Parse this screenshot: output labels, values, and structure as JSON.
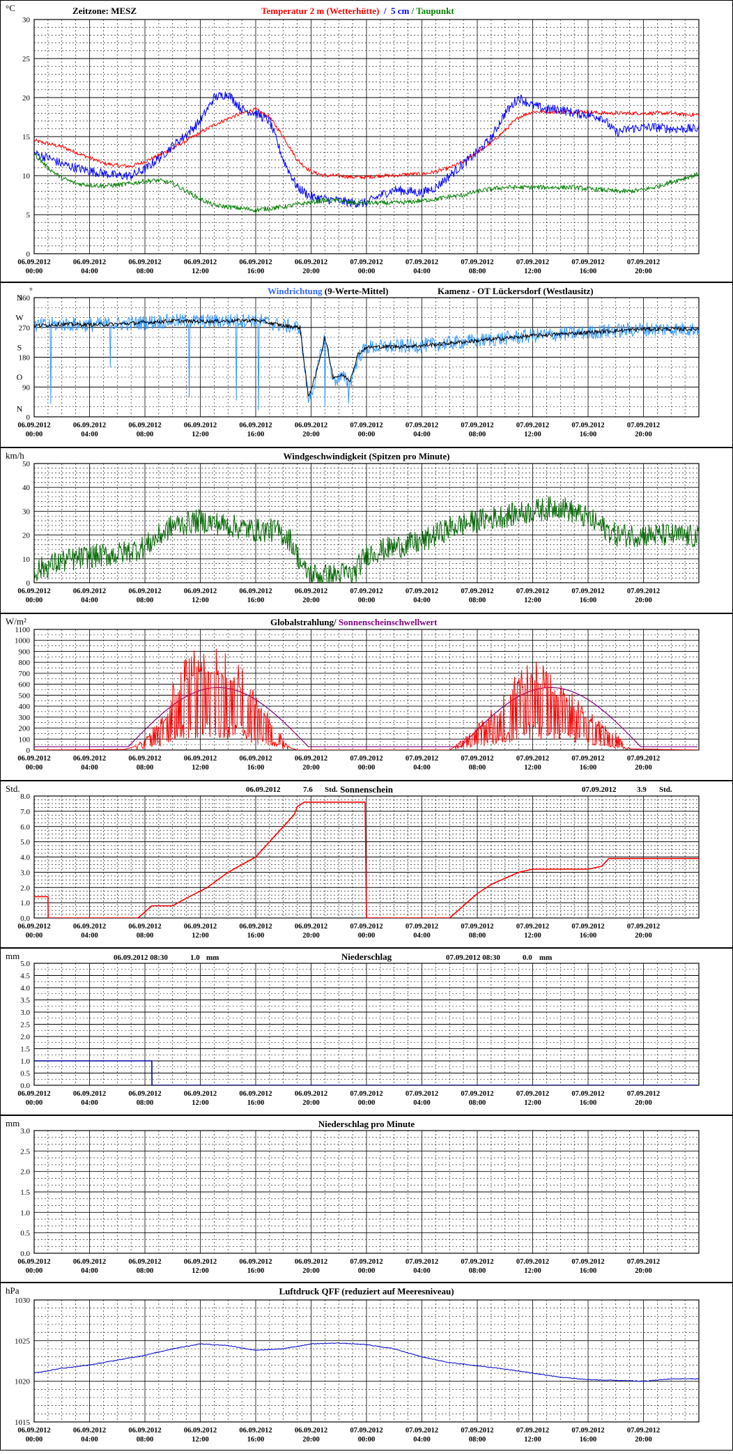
{
  "time_axis": {
    "date_labels": [
      "06.09.2012",
      "06.09.2012",
      "06.09.2012",
      "06.09.2012",
      "06.09.2012",
      "06.09.2012",
      "07.09.2012",
      "07.09.2012",
      "07.09.2012",
      "07.09.2012",
      "07.09.2012",
      "07.09.2012"
    ],
    "time_labels": [
      "00:00",
      "04:00",
      "08:00",
      "12:00",
      "16:00",
      "20:00",
      "00:00",
      "04:00",
      "08:00",
      "12:00",
      "16:00",
      "20:00"
    ]
  },
  "chart_data": [
    {
      "id": "temperature",
      "type": "line",
      "unit": "°C",
      "header_left": "Zeitzone: MESZ",
      "title_parts": [
        {
          "text": "Temperatur 2 m (Wetterhütte)",
          "color": "#ff0000"
        },
        {
          "text": "  /  ",
          "color": "#0000ff"
        },
        {
          "text": "5 cm",
          "color": "#0000ff"
        },
        {
          "text": " / ",
          "color": "#008000"
        },
        {
          "text": "Taupunkt",
          "color": "#008000"
        }
      ],
      "ylim": [
        0,
        30
      ],
      "yticks": [
        "0",
        "5",
        "10",
        "15",
        "20",
        "25",
        "30"
      ],
      "xlim_hours": [
        0,
        48
      ],
      "grid": true,
      "series": [
        {
          "color": "#ff0000",
          "noise": 0.25,
          "x": [
            0,
            1,
            2,
            3,
            4,
            5,
            6,
            7,
            8,
            9,
            10,
            11,
            12,
            13,
            14,
            15,
            16,
            17,
            18,
            19,
            20,
            21,
            22,
            23,
            24,
            25,
            26,
            27,
            28,
            29,
            30,
            31,
            32,
            33,
            34,
            35,
            36,
            37,
            38,
            39,
            40,
            41,
            42,
            43,
            44,
            45,
            46,
            47,
            48
          ],
          "values": [
            14.5,
            14.1,
            13.7,
            13.0,
            12.3,
            11.6,
            11.3,
            11.2,
            11.8,
            12.6,
            13.5,
            14.5,
            15.5,
            16.5,
            17.3,
            18.0,
            18.5,
            17.5,
            15.0,
            12.0,
            10.5,
            10.0,
            10.0,
            9.8,
            9.8,
            10.0,
            10.0,
            10.2,
            10.2,
            10.5,
            11.0,
            11.8,
            13.0,
            14.2,
            15.8,
            17.5,
            18.2,
            18.2,
            18.2,
            18.2,
            18.2,
            18.0,
            18.0,
            18.0,
            18.0,
            18.0,
            18.0,
            17.8,
            17.8
          ]
        },
        {
          "color": "#0000ff",
          "noise": 0.6,
          "x": [
            0,
            1,
            2,
            3,
            4,
            5,
            6,
            7,
            8,
            9,
            10,
            11,
            12,
            13,
            14,
            15,
            16,
            17,
            18,
            19,
            20,
            21,
            22,
            23,
            24,
            25,
            26,
            27,
            28,
            29,
            30,
            31,
            32,
            33,
            34,
            35,
            36,
            37,
            38,
            39,
            40,
            41,
            42,
            43,
            44,
            45,
            46,
            47,
            48
          ],
          "values": [
            12.8,
            12.3,
            11.5,
            11.0,
            10.6,
            10.3,
            10.0,
            10.0,
            10.8,
            12.2,
            13.8,
            15.3,
            17.0,
            20.0,
            20.5,
            18.5,
            18.0,
            17.0,
            12.0,
            8.5,
            7.3,
            7.0,
            6.8,
            6.5,
            6.5,
            7.5,
            8.2,
            8.0,
            7.8,
            8.5,
            10.0,
            11.5,
            13.0,
            14.8,
            18.0,
            20.0,
            19.0,
            18.5,
            18.5,
            18.0,
            17.8,
            17.5,
            15.5,
            16.0,
            16.2,
            16.2,
            16.0,
            16.0,
            16.0
          ]
        },
        {
          "color": "#008000",
          "noise": 0.3,
          "x": [
            0,
            1,
            2,
            3,
            4,
            5,
            6,
            7,
            8,
            9,
            10,
            11,
            12,
            13,
            14,
            15,
            16,
            17,
            18,
            19,
            20,
            21,
            22,
            23,
            24,
            25,
            26,
            27,
            28,
            29,
            30,
            31,
            32,
            33,
            34,
            35,
            36,
            37,
            38,
            39,
            40,
            41,
            42,
            43,
            44,
            45,
            46,
            47,
            48
          ],
          "values": [
            12.8,
            11.0,
            9.7,
            9.0,
            8.8,
            8.7,
            8.8,
            9.0,
            9.3,
            9.4,
            9.0,
            8.0,
            7.0,
            6.2,
            6.0,
            5.8,
            5.6,
            5.8,
            6.0,
            6.3,
            6.6,
            6.8,
            6.8,
            6.5,
            6.5,
            6.5,
            6.5,
            6.6,
            6.8,
            7.0,
            7.3,
            7.5,
            8.0,
            8.3,
            8.5,
            8.5,
            8.5,
            8.5,
            8.5,
            8.5,
            8.3,
            8.2,
            8.0,
            8.0,
            8.2,
            8.6,
            9.2,
            9.7,
            10.2
          ]
        }
      ]
    },
    {
      "id": "wind_direction",
      "type": "line",
      "title_parts": [
        {
          "text": "Windrichtung",
          "color": "#3366ff"
        },
        {
          "text": " (9-Werte-Mittel)",
          "color": "#000000"
        }
      ],
      "title_right": "Kamenz - OT Lückersdorf (Westlausitz)",
      "corner_label": "N",
      "corner_label_right": "°",
      "ylim": [
        0,
        360
      ],
      "yticks": [
        "0",
        "90",
        "180",
        "270",
        "360"
      ],
      "direction_labels": [
        {
          "text": "N",
          "v": 360
        },
        {
          "text": "W",
          "v": 300
        },
        {
          "text": "S",
          "v": 210
        },
        {
          "text": "O",
          "v": 120
        },
        {
          "text": "N",
          "v": 24
        }
      ],
      "xlim_hours": [
        0,
        48
      ],
      "grid": true,
      "series": [
        {
          "color": "#3399ff",
          "noise": 22,
          "spikes": [
            [
              1.2,
              40
            ],
            [
              5.5,
              150
            ],
            [
              11.2,
              60
            ],
            [
              14.6,
              50
            ],
            [
              16.2,
              20
            ],
            [
              21.0,
              30
            ],
            [
              22.7,
              40
            ]
          ],
          "x": [
            0,
            2,
            4,
            6,
            8,
            10,
            12,
            14,
            16,
            18,
            19.2,
            19.8,
            20.3,
            21,
            21.6,
            22.3,
            22.8,
            23.4,
            24,
            28,
            32,
            36,
            40,
            44,
            48
          ],
          "values": [
            275,
            280,
            278,
            280,
            285,
            290,
            288,
            290,
            292,
            275,
            270,
            50,
            110,
            250,
            110,
            120,
            100,
            180,
            210,
            215,
            230,
            245,
            255,
            265,
            265
          ]
        },
        {
          "color": "#000000",
          "noise": 6,
          "x": [
            0,
            2,
            4,
            6,
            8,
            10,
            12,
            14,
            16,
            18,
            19.2,
            19.8,
            20.3,
            21,
            21.6,
            22.3,
            22.8,
            23.4,
            24,
            28,
            32,
            36,
            40,
            44,
            48
          ],
          "values": [
            275,
            280,
            278,
            280,
            285,
            290,
            288,
            290,
            292,
            275,
            270,
            60,
            120,
            240,
            120,
            125,
            110,
            190,
            210,
            215,
            230,
            245,
            255,
            265,
            265
          ]
        }
      ]
    },
    {
      "id": "wind_speed",
      "type": "line",
      "unit": "km/h",
      "title": "Windgeschwindigkeit (Spitzen pro Minute)",
      "ylim": [
        0,
        50
      ],
      "yticks": [
        "0",
        "10",
        "20",
        "30",
        "40",
        "50"
      ],
      "xlim_hours": [
        0,
        48
      ],
      "grid": true,
      "series": [
        {
          "color": "#006600",
          "noise": 5,
          "x": [
            0,
            2,
            4,
            6,
            8,
            10,
            12,
            14,
            16,
            17.5,
            18.5,
            19.5,
            20.5,
            21.5,
            22.5,
            23,
            24,
            26,
            28,
            30,
            32,
            34,
            36,
            38,
            40,
            42,
            44,
            46,
            48
          ],
          "values": [
            5,
            9,
            11,
            12,
            15,
            24,
            26,
            24,
            22,
            22,
            18,
            5,
            3,
            3,
            4,
            3,
            12,
            15,
            17,
            23,
            26,
            28,
            30,
            32,
            27,
            20,
            20,
            20,
            19
          ]
        }
      ]
    },
    {
      "id": "global_radiation",
      "type": "line",
      "unit": "W/m²",
      "title_parts": [
        {
          "text": "Globalstrahlung/ ",
          "color": "#000000"
        },
        {
          "text": "Sonnenscheinschwellwert",
          "color": "#800080"
        }
      ],
      "ylim": [
        0,
        1100
      ],
      "yticks": [
        "0",
        "100",
        "200",
        "300",
        "400",
        "500",
        "600",
        "700",
        "800",
        "900",
        "1000",
        "1100"
      ],
      "xlim_hours": [
        0,
        48
      ],
      "grid": true,
      "threshold_curve": {
        "color": "#800080",
        "base": 30,
        "peak": 570,
        "days": [
          [
            6.8,
            13.3,
            19.8
          ],
          [
            30.8,
            37.3,
            43.8
          ]
        ]
      },
      "series": [
        {
          "color": "#ff0000",
          "noise": 0,
          "spiky": true,
          "x": [
            0,
            6.5,
            7.5,
            8.5,
            9.5,
            10,
            11,
            12,
            13,
            14,
            15,
            16,
            17,
            18,
            18.5,
            19,
            24,
            30,
            30.5,
            31.5,
            32.5,
            33.5,
            34.5,
            35.5,
            36,
            36.5,
            37.5,
            38.5,
            39.5,
            40.5,
            41.5,
            42.5,
            43,
            48
          ],
          "values": [
            0,
            5,
            40,
            140,
            280,
            450,
            640,
            720,
            700,
            650,
            560,
            400,
            250,
            80,
            20,
            0,
            0,
            0,
            40,
            120,
            220,
            320,
            480,
            600,
            650,
            600,
            520,
            420,
            320,
            230,
            160,
            80,
            10,
            0
          ]
        }
      ]
    },
    {
      "id": "sunshine",
      "type": "line",
      "unit": "Std.",
      "title": "Sonnenschein",
      "annotations": [
        {
          "date": "06.09.2012",
          "value": "7.6",
          "unit": "Std."
        },
        {
          "date": "07.09.2012",
          "value": "3.9",
          "unit": "Std."
        }
      ],
      "ylim": [
        0,
        8
      ],
      "yticks": [
        "0.0",
        "1.0",
        "2.0",
        "3.0",
        "4.0",
        "5.0",
        "6.0",
        "7.0",
        "8.0"
      ],
      "xlim_hours": [
        0,
        48
      ],
      "grid": true,
      "series": [
        {
          "color": "#ff0000",
          "noise": 0,
          "x": [
            0,
            1.0,
            1.01,
            7.5,
            8.5,
            10.0,
            11.0,
            12.5,
            14.0,
            16.0,
            17.0,
            18.0,
            18.8,
            19.0,
            19.5,
            23.9,
            24.0,
            30.0,
            31.0,
            32.0,
            33.0,
            34.0,
            35.0,
            36.0,
            38.0,
            40.0,
            41.0,
            41.5,
            48.0
          ],
          "values": [
            1.4,
            1.4,
            0,
            0,
            0.8,
            0.8,
            1.3,
            2.0,
            3.0,
            4.0,
            5.0,
            6.0,
            6.8,
            7.3,
            7.6,
            7.6,
            0,
            0,
            0.8,
            1.6,
            2.2,
            2.6,
            3.0,
            3.2,
            3.2,
            3.2,
            3.4,
            3.9,
            3.9
          ]
        }
      ]
    },
    {
      "id": "precipitation",
      "type": "line",
      "unit": "mm",
      "title": "Niederschlag",
      "annotations": [
        {
          "date": "06.09.2012 08:30",
          "value": "1.0",
          "unit": "mm"
        },
        {
          "date": "07.09.2012 08:30",
          "value": "0.0",
          "unit": "mm"
        }
      ],
      "ylim": [
        0,
        5
      ],
      "yticks": [
        "0.0",
        "0.5",
        "1.0",
        "1.5",
        "2.0",
        "2.5",
        "3.0",
        "3.5",
        "4.0",
        "4.5",
        "5.0"
      ],
      "xlim_hours": [
        0,
        48
      ],
      "grid": true,
      "series": [
        {
          "color": "#0000aa",
          "noise": 0,
          "x": [
            0,
            8.5,
            8.51,
            48
          ],
          "values": [
            1.0,
            1.0,
            0.0,
            0.0
          ]
        }
      ]
    },
    {
      "id": "precipitation_per_minute",
      "type": "line",
      "unit": "mm",
      "title": "Niederschlag pro Minute",
      "ylim": [
        0,
        3
      ],
      "yticks": [
        "0.0",
        "0.5",
        "1.0",
        "1.5",
        "2.0",
        "2.5",
        "3.0"
      ],
      "xlim_hours": [
        0,
        48
      ],
      "grid": true,
      "series": []
    },
    {
      "id": "pressure",
      "type": "line",
      "unit": "hPa",
      "title": "Luftdruck QFF (reduziert auf Meeresniveau)",
      "ylim": [
        1015,
        1030
      ],
      "yticks": [
        "1015",
        "1020",
        "1025",
        "1030"
      ],
      "xlim_hours": [
        0,
        48
      ],
      "grid": true,
      "series": [
        {
          "color": "#0000cc",
          "noise": 0.05,
          "x": [
            0,
            2,
            4,
            6,
            8,
            10,
            12,
            14,
            16,
            18,
            20,
            22,
            24,
            26,
            28,
            30,
            32,
            34,
            36,
            38,
            40,
            42,
            44,
            46,
            48
          ],
          "values": [
            1021.0,
            1021.6,
            1022.0,
            1022.6,
            1023.2,
            1024.0,
            1024.6,
            1024.4,
            1023.8,
            1024.0,
            1024.6,
            1024.7,
            1024.5,
            1024.0,
            1023.0,
            1022.3,
            1021.9,
            1021.5,
            1021.0,
            1020.5,
            1020.2,
            1020.1,
            1020.0,
            1020.3,
            1020.3
          ]
        }
      ]
    }
  ]
}
